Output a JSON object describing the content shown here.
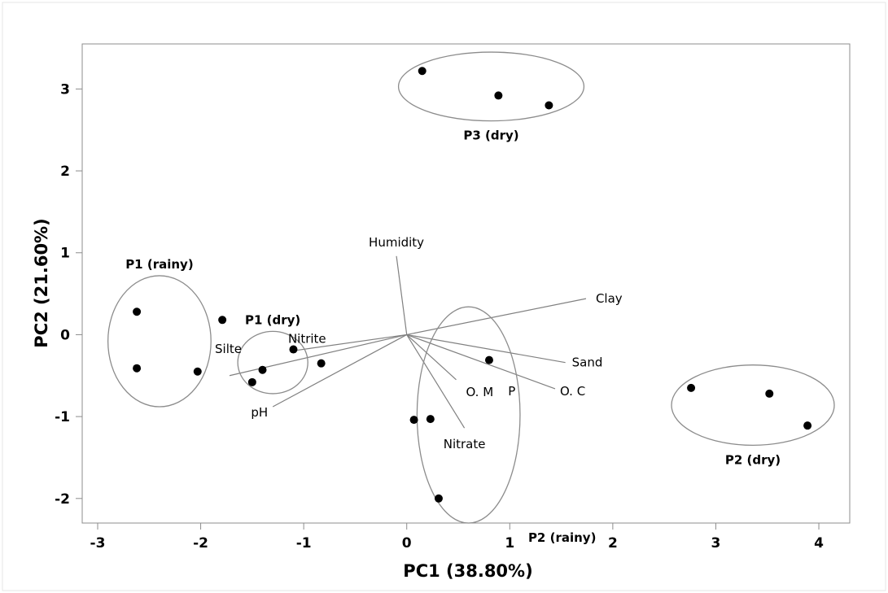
{
  "chart_data": {
    "type": "scatter",
    "title": "",
    "xlabel": "PC1 (38.80%)",
    "ylabel": "PC2 (21.60%)",
    "xlim": [
      -3.15,
      4.3
    ],
    "ylim": [
      -2.3,
      3.55
    ],
    "xticks": [
      -3,
      -2,
      -1,
      0,
      1,
      2,
      3,
      4
    ],
    "yticks": [
      -2,
      -1,
      0,
      1,
      2,
      3
    ],
    "grid": false,
    "points": [
      {
        "x": -2.62,
        "y": 0.28
      },
      {
        "x": -2.62,
        "y": -0.41
      },
      {
        "x": -2.03,
        "y": -0.45
      },
      {
        "x": -1.79,
        "y": 0.18
      },
      {
        "x": -1.1,
        "y": -0.18
      },
      {
        "x": -0.83,
        "y": -0.35
      },
      {
        "x": -1.4,
        "y": -0.43
      },
      {
        "x": -1.5,
        "y": -0.58
      },
      {
        "x": 0.15,
        "y": 3.22
      },
      {
        "x": 0.89,
        "y": 2.92
      },
      {
        "x": 1.38,
        "y": 2.8
      },
      {
        "x": 0.8,
        "y": -0.31
      },
      {
        "x": 0.07,
        "y": -1.04
      },
      {
        "x": 0.23,
        "y": -1.03
      },
      {
        "x": 0.31,
        "y": -2.0
      },
      {
        "x": 2.76,
        "y": -0.65
      },
      {
        "x": 3.52,
        "y": -0.72
      },
      {
        "x": 3.89,
        "y": -1.11
      }
    ],
    "groups": [
      {
        "name": "P1 (rainy)",
        "cx": -2.4,
        "cy": -0.08,
        "rx": 0.5,
        "ry": 0.8
      },
      {
        "name": "P1 (dry)",
        "cx": -1.3,
        "cy": -0.34,
        "rx": 0.34,
        "ry": 0.38
      },
      {
        "name": "P3 (dry)",
        "cx": 0.82,
        "cy": 3.03,
        "rx": 0.9,
        "ry": 0.42
      },
      {
        "name": "P2 (rainy)",
        "cx": 0.6,
        "cy": -0.98,
        "rx": 0.5,
        "ry": 1.32
      },
      {
        "name": "P2 (dry)",
        "cx": 3.36,
        "cy": -0.86,
        "rx": 0.79,
        "ry": 0.49
      }
    ],
    "loadings": [
      {
        "name": "Humidity",
        "x": -0.1,
        "y": 0.96
      },
      {
        "name": "Clay",
        "x": 1.74,
        "y": 0.44
      },
      {
        "name": "Sand",
        "x": 1.54,
        "y": -0.34
      },
      {
        "name": "O. C",
        "x": 1.44,
        "y": -0.66
      },
      {
        "name": "P",
        "x": 1.02,
        "y": -0.74
      },
      {
        "name": "O. M",
        "x": 0.48,
        "y": -0.55
      },
      {
        "name": "Nitrate",
        "x": 0.56,
        "y": -1.14
      },
      {
        "name": "Nitrite",
        "x": -1.12,
        "y": -0.2
      },
      {
        "name": "Silte",
        "x": -1.72,
        "y": -0.5
      },
      {
        "name": "pH",
        "x": -1.3,
        "y": -0.88
      }
    ]
  }
}
